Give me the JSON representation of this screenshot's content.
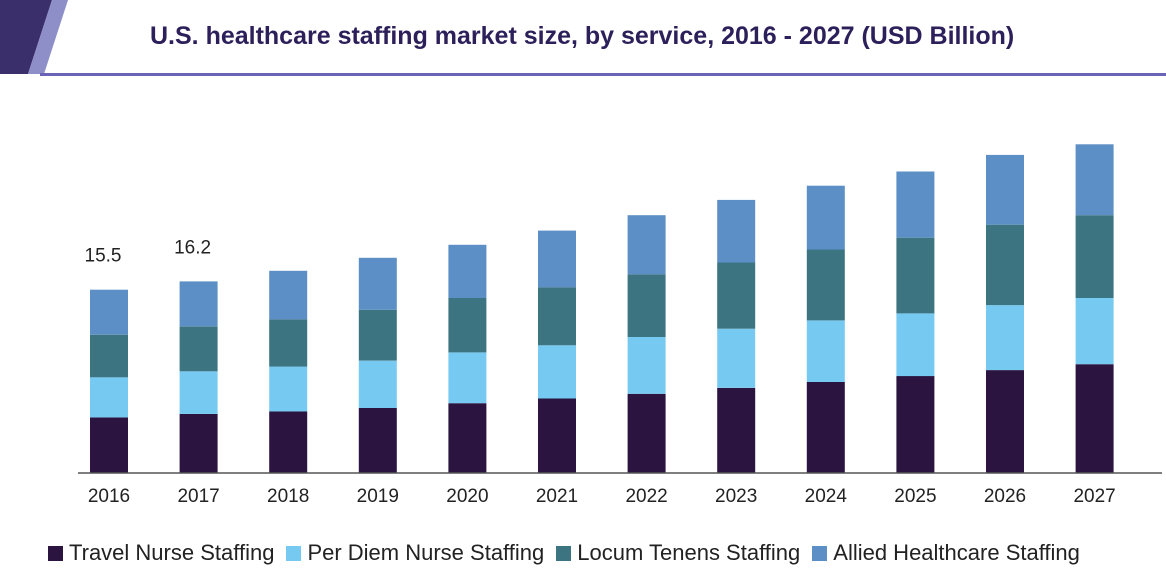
{
  "chart_data": {
    "type": "bar",
    "stacked": true,
    "title": "U.S. healthcare staffing market size, by service, 2016 - 2027 (USD Billion)",
    "categories": [
      "2016",
      "2017",
      "2018",
      "2019",
      "2020",
      "2021",
      "2022",
      "2023",
      "2024",
      "2025",
      "2026",
      "2027"
    ],
    "series": [
      {
        "name": "Travel Nurse Staffing",
        "color": "#2b1440",
        "values": [
          4.7,
          5.0,
          5.2,
          5.5,
          5.9,
          6.3,
          6.7,
          7.2,
          7.7,
          8.2,
          8.7,
          9.2
        ]
      },
      {
        "name": "Per Diem Nurse Staffing",
        "color": "#76c9f0",
        "values": [
          3.4,
          3.6,
          3.8,
          4.0,
          4.3,
          4.5,
          4.8,
          5.0,
          5.2,
          5.3,
          5.5,
          5.6
        ]
      },
      {
        "name": "Locum Tenens Staffing",
        "color": "#3c7482",
        "values": [
          3.6,
          3.8,
          4.0,
          4.3,
          4.6,
          4.9,
          5.3,
          5.6,
          6.0,
          6.4,
          6.8,
          7.0
        ]
      },
      {
        "name": "Allied Healthcare Staffing",
        "color": "#5b8fc5",
        "values": [
          3.8,
          3.8,
          4.1,
          4.4,
          4.5,
          4.8,
          5.0,
          5.3,
          5.4,
          5.6,
          5.9,
          6.0
        ]
      }
    ],
    "data_labels": [
      {
        "category": "2016",
        "text": "15.5"
      },
      {
        "category": "2017",
        "text": "16.2"
      }
    ],
    "ylim": [
      0,
      28.5
    ],
    "grid": false,
    "legend_position": "bottom"
  }
}
